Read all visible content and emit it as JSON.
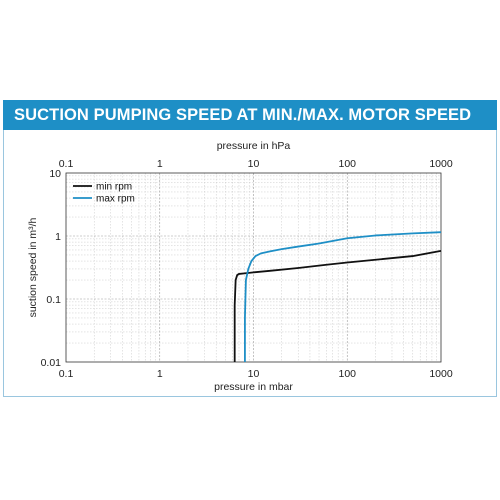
{
  "banner": {
    "title": "SUCTION PUMPING SPEED AT MIN./MAX. MOTOR SPEED",
    "color": "#1e8fc6"
  },
  "chart_data": {
    "type": "line",
    "title": "SUCTION PUMPING SPEED AT MIN./MAX. MOTOR SPEED",
    "xlabel": "pressure in mbar",
    "x2label": "pressure in hPa",
    "ylabel": "suction speed in m³/h",
    "xscale": "log",
    "yscale": "log",
    "xlim": [
      0.1,
      1000
    ],
    "ylim": [
      0.01,
      10
    ],
    "xticks": [
      "0.1",
      "1",
      "10",
      "100",
      "1000"
    ],
    "x2ticks": [
      "0.1",
      "1",
      "10",
      "100",
      "1000"
    ],
    "yticks": [
      "0.01",
      "0.1",
      "1",
      "10"
    ],
    "grid": true,
    "legend_position": "top-left",
    "series": [
      {
        "name": "min rpm",
        "color": "#111111",
        "x": [
          6.3,
          6.3,
          6.45,
          6.7,
          7,
          8,
          10,
          15,
          30,
          60,
          100,
          200,
          500,
          1000
        ],
        "y": [
          0.01,
          0.08,
          0.2,
          0.24,
          0.25,
          0.255,
          0.265,
          0.28,
          0.31,
          0.35,
          0.38,
          0.42,
          0.48,
          0.58
        ]
      },
      {
        "name": "max rpm",
        "color": "#1e8fc6",
        "x": [
          8.1,
          8.1,
          8.3,
          8.8,
          9.5,
          10.5,
          12,
          15,
          20,
          30,
          50,
          100,
          200,
          500,
          1000
        ],
        "y": [
          0.01,
          0.05,
          0.2,
          0.3,
          0.4,
          0.48,
          0.53,
          0.57,
          0.62,
          0.68,
          0.76,
          0.92,
          1.02,
          1.1,
          1.15
        ]
      }
    ]
  }
}
